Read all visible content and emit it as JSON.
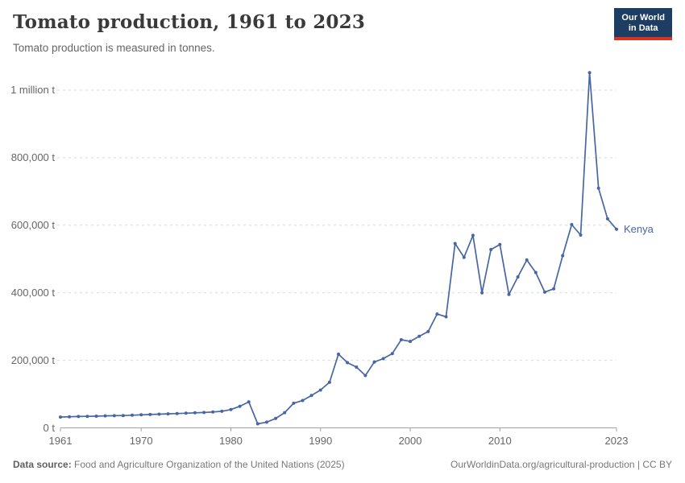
{
  "header": {
    "title": "Tomato production, 1961 to 2023",
    "subtitle": "Tomato production is measured in tonnes.",
    "logo_line1": "Our World",
    "logo_line2": "in Data",
    "logo_bg_color": "#1d3d63",
    "logo_accent_color": "#dc3121"
  },
  "chart_data": {
    "type": "line",
    "title": "Tomato production, 1961 to 2023",
    "subtitle": "Tomato production is measured in tonnes.",
    "unit": "tonnes",
    "xlim": [
      1961,
      2023
    ],
    "ylim": [
      0,
      1000000
    ],
    "grid": "horizontal-dashed",
    "legend_position": "end-of-line-label",
    "x_ticks": [
      {
        "value": 1961,
        "label": "1961"
      },
      {
        "value": 1970,
        "label": "1970"
      },
      {
        "value": 1980,
        "label": "1980"
      },
      {
        "value": 1990,
        "label": "1990"
      },
      {
        "value": 2000,
        "label": "2000"
      },
      {
        "value": 2010,
        "label": "2010"
      },
      {
        "value": 2023,
        "label": "2023"
      }
    ],
    "y_ticks": [
      {
        "value": 0,
        "label": "0 t"
      },
      {
        "value": 200000,
        "label": "200,000 t"
      },
      {
        "value": 400000,
        "label": "400,000 t"
      },
      {
        "value": 600000,
        "label": "600,000 t"
      },
      {
        "value": 800000,
        "label": "800,000 t"
      },
      {
        "value": 1000000,
        "label": "1 million t"
      }
    ],
    "series": [
      {
        "name": "Kenya",
        "color": "#4766a4",
        "years": [
          1961,
          1962,
          1963,
          1964,
          1965,
          1966,
          1967,
          1968,
          1969,
          1970,
          1971,
          1972,
          1973,
          1974,
          1975,
          1976,
          1977,
          1978,
          1979,
          1980,
          1981,
          1982,
          1983,
          1984,
          1985,
          1986,
          1987,
          1988,
          1989,
          1990,
          1991,
          1992,
          1993,
          1994,
          1995,
          1996,
          1997,
          1998,
          1999,
          2000,
          2001,
          2002,
          2003,
          2004,
          2005,
          2006,
          2007,
          2008,
          2009,
          2010,
          2011,
          2012,
          2013,
          2014,
          2015,
          2016,
          2017,
          2018,
          2019,
          2020,
          2021,
          2022,
          2023
        ],
        "values": [
          32000,
          33000,
          33500,
          34000,
          34500,
          35500,
          36000,
          36500,
          37500,
          38500,
          39500,
          40500,
          41500,
          42500,
          43500,
          44500,
          45500,
          47000,
          49000,
          54000,
          64000,
          77000,
          12000,
          17000,
          28000,
          45000,
          73000,
          81000,
          96000,
          112000,
          135000,
          218000,
          193000,
          180000,
          155000,
          195000,
          205000,
          220000,
          261000,
          256000,
          271000,
          285000,
          337000,
          329000,
          546000,
          505000,
          570000,
          400000,
          528000,
          543000,
          395000,
          447000,
          497000,
          460000,
          402000,
          412000,
          510000,
          602000,
          571000,
          1052000,
          710000,
          619000,
          588000
        ]
      }
    ]
  },
  "footer": {
    "datasource_label": "Data source:",
    "datasource_text": "Food and Agriculture Organization of the United Nations (2025)",
    "link_text": "OurWorldinData.org/agricultural-production | CC BY"
  }
}
